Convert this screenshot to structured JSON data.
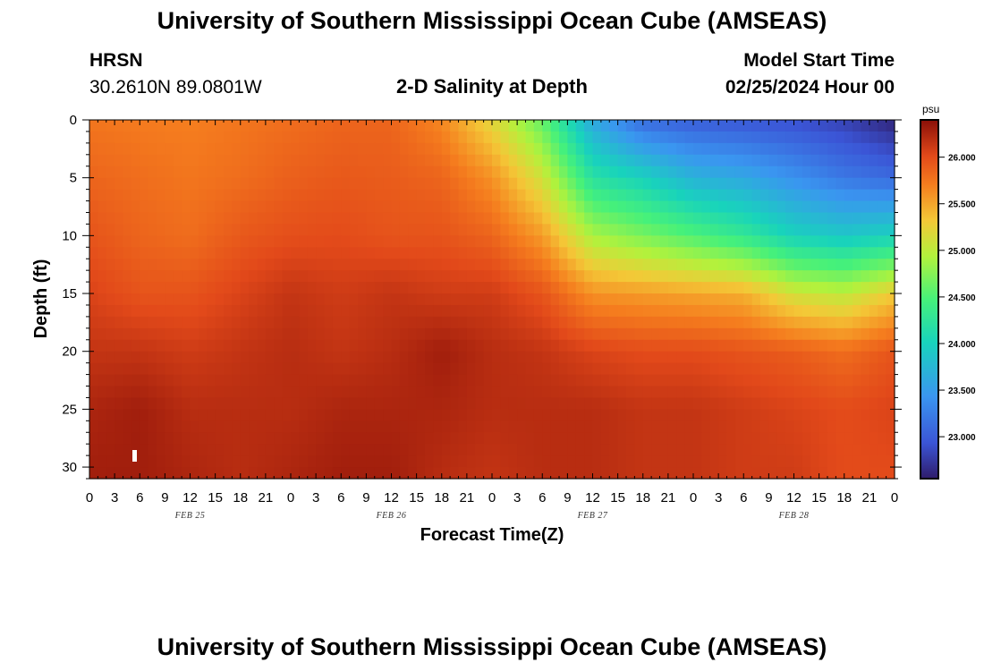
{
  "header": {
    "title": "University of Southern Mississippi Ocean Cube (AMSEAS)",
    "station_name": "HRSN",
    "station_coords": "30.2610N  89.0801W",
    "chart_title": "2-D Salinity at Depth",
    "model_start_label": "Model Start Time",
    "model_start_value": "02/25/2024 Hour 00"
  },
  "footer": {
    "title": "University of Southern Mississippi Ocean Cube (AMSEAS)"
  },
  "chart_data": {
    "type": "heatmap",
    "title": "2-D Salinity at Depth",
    "xlabel": "Forecast Time(Z)",
    "ylabel": "Depth (ft)",
    "x_tick_labels": [
      "0",
      "3",
      "6",
      "9",
      "12",
      "15",
      "18",
      "21",
      "0",
      "3",
      "6",
      "9",
      "12",
      "15",
      "18",
      "21",
      "0",
      "3",
      "6",
      "9",
      "12",
      "15",
      "18",
      "21",
      "0",
      "3",
      "6",
      "9",
      "12",
      "15",
      "18",
      "21",
      "0"
    ],
    "x_date_labels": [
      "FEB 25",
      "FEB 26",
      "FEB 27",
      "FEB 28"
    ],
    "y_ticks": [
      0,
      5,
      10,
      15,
      20,
      25,
      30
    ],
    "ylim": [
      0,
      31
    ],
    "xlim_hours": [
      0,
      96
    ],
    "colorbar": {
      "unit": "psu",
      "range": [
        22.55,
        26.4
      ],
      "labels": [
        "26.000",
        "25.500",
        "25.000",
        "24.500",
        "24.000",
        "23.500",
        "23.000"
      ],
      "values": [
        26.0,
        25.5,
        25.0,
        24.5,
        24.0,
        23.5,
        23.0
      ]
    },
    "salinity_field": {
      "depths_ft": [
        0,
        5,
        10,
        15,
        20,
        25,
        31
      ],
      "times_hours": [
        0,
        6,
        12,
        18,
        24,
        30,
        36,
        42,
        48,
        54,
        60,
        66,
        72,
        78,
        84,
        90,
        96
      ],
      "values": [
        [
          25.75,
          25.72,
          25.7,
          25.75,
          25.8,
          25.85,
          25.85,
          25.65,
          25.2,
          24.6,
          23.6,
          23.1,
          23.0,
          22.95,
          22.9,
          22.8,
          22.6
        ],
        [
          25.85,
          25.8,
          25.75,
          25.8,
          25.88,
          25.92,
          25.9,
          25.85,
          25.6,
          25.1,
          24.2,
          24.0,
          23.7,
          23.6,
          23.4,
          23.2,
          23.1
        ],
        [
          25.95,
          25.85,
          25.8,
          25.92,
          25.98,
          26.0,
          25.95,
          25.95,
          25.85,
          25.55,
          24.9,
          24.7,
          24.5,
          24.3,
          24.0,
          23.9,
          24.0
        ],
        [
          26.05,
          25.95,
          25.95,
          26.05,
          26.15,
          26.1,
          26.15,
          26.1,
          26.1,
          25.95,
          25.6,
          25.55,
          25.5,
          25.45,
          25.1,
          25.0,
          25.3
        ],
        [
          26.15,
          26.15,
          26.1,
          26.15,
          26.2,
          26.15,
          26.2,
          26.3,
          26.2,
          26.15,
          26.05,
          26.0,
          26.0,
          25.95,
          25.9,
          25.8,
          25.95
        ],
        [
          26.25,
          26.3,
          26.2,
          26.2,
          26.2,
          26.25,
          26.25,
          26.25,
          26.2,
          26.2,
          26.2,
          26.15,
          26.15,
          26.1,
          26.05,
          26.0,
          26.05
        ],
        [
          26.3,
          26.3,
          26.25,
          26.2,
          26.25,
          26.3,
          26.3,
          26.2,
          26.15,
          26.2,
          26.2,
          26.15,
          26.15,
          26.1,
          26.1,
          26.0,
          26.0
        ]
      ]
    }
  }
}
